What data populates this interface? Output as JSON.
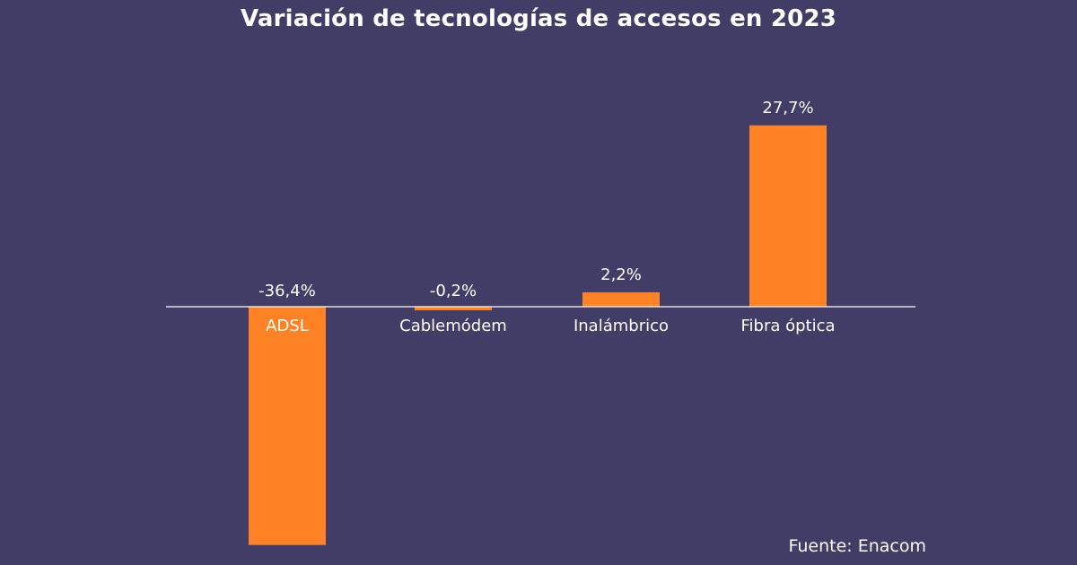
{
  "title": "Variación de tecnologías de accesos en 2023",
  "source": "Fuente: Enacom",
  "colors": {
    "background": "#413d67",
    "bar": "#ff8224",
    "axis": "#ffffff",
    "text": "#ffffff"
  },
  "chart_data": {
    "type": "bar",
    "title": "Variación de tecnologías de accesos en 2023",
    "categories": [
      "ADSL",
      "Cablemódem",
      "Inalámbrico",
      "Fibra óptica"
    ],
    "values": [
      -36.4,
      -0.2,
      2.2,
      27.7
    ],
    "value_labels": [
      "-36,4%",
      "-0,2%",
      "2,2%",
      "27,7%"
    ],
    "unit": "%",
    "ylim": [
      -36.4,
      27.7
    ],
    "grid": false,
    "legend": "none"
  }
}
